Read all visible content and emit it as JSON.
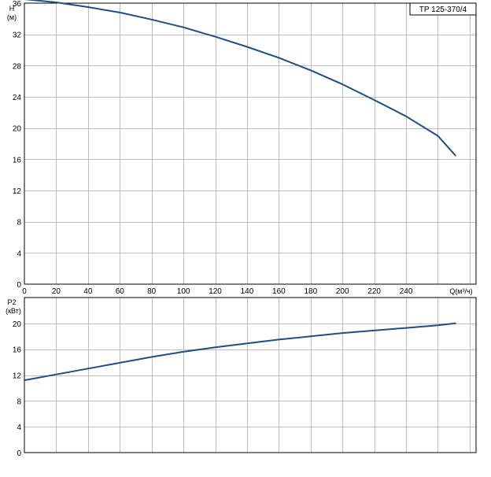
{
  "chart_data": [
    {
      "type": "line",
      "title": "TP 125-370/4",
      "ylabel": "H",
      "yunit": "(м)",
      "xlabel": "Q(м³/ч)",
      "xlim": [
        0,
        284
      ],
      "ylim": [
        0,
        36
      ],
      "xticks": [
        0,
        20,
        40,
        60,
        80,
        100,
        120,
        140,
        160,
        180,
        200,
        220,
        240
      ],
      "yticks": [
        0,
        4,
        8,
        12,
        16,
        20,
        24,
        28,
        32,
        36
      ],
      "grid": true,
      "series": [
        {
          "color": "#1f4e85",
          "x": [
            0,
            20,
            40,
            60,
            80,
            100,
            120,
            140,
            160,
            180,
            200,
            220,
            240,
            260,
            271
          ],
          "y": [
            36.5,
            36.1,
            35.5,
            34.8,
            33.9,
            32.9,
            31.7,
            30.4,
            29.0,
            27.4,
            25.6,
            23.6,
            21.5,
            19.0,
            16.5
          ]
        }
      ]
    },
    {
      "type": "line",
      "ylabel": "P2",
      "yunit": "(кВт)",
      "xlim": [
        0,
        284
      ],
      "ylim": [
        0,
        24
      ],
      "yticks": [
        0,
        4,
        8,
        12,
        16,
        20
      ],
      "grid": true,
      "series": [
        {
          "color": "#1f4e85",
          "x": [
            0,
            20,
            40,
            60,
            80,
            100,
            120,
            140,
            160,
            180,
            200,
            220,
            240,
            260,
            271
          ],
          "y": [
            11.2,
            12.1,
            13.0,
            13.9,
            14.8,
            15.6,
            16.3,
            16.9,
            17.5,
            18.0,
            18.5,
            18.9,
            19.3,
            19.7,
            20.0
          ]
        }
      ]
    }
  ]
}
